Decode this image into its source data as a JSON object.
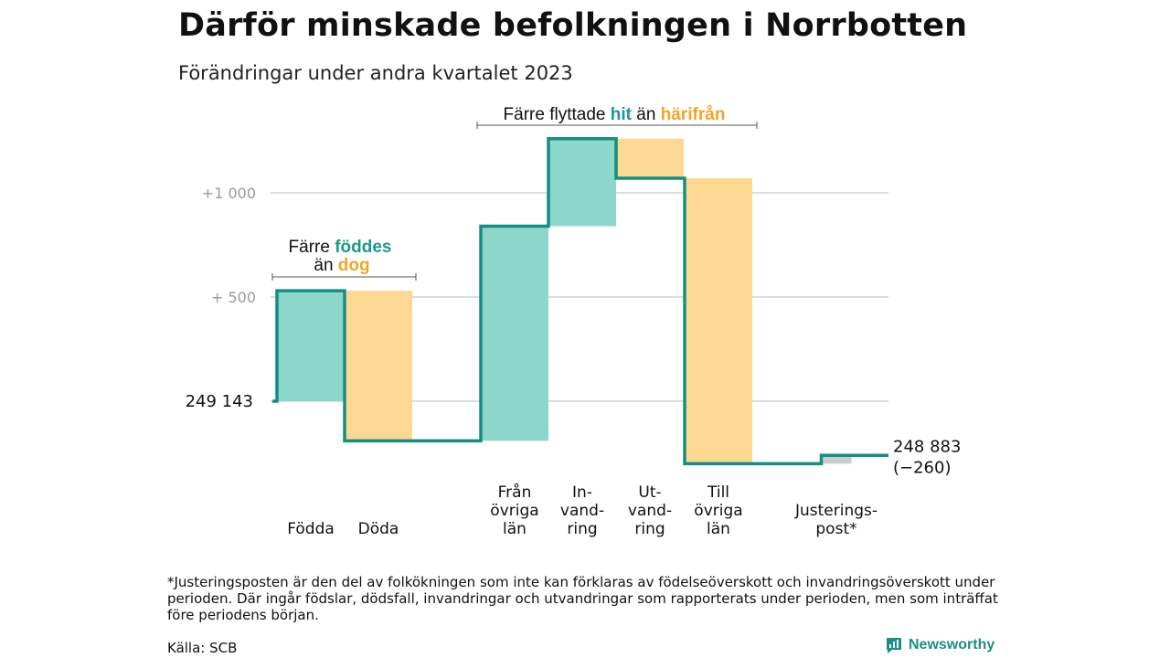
{
  "title": "Därför minskade befolkningen i Norrbotten",
  "subtitle": "Förändringar under andra kvartalet 2023",
  "colors": {
    "teal_line": "#138f82",
    "inflow_bar": "#8dd6cc",
    "outflow_bar": "#fcd893",
    "adjustment_bar": "#cccccc",
    "grid": "#dddddd",
    "highlight_in": "#1a9a8c",
    "highlight_out": "#f0a526"
  },
  "annotations": {
    "births": {
      "line1_prefix": "Färre ",
      "line1_highlight": "föddes",
      "line2_prefix": "än ",
      "line2_highlight": "dog"
    },
    "migration": {
      "prefix": "Färre flyttade ",
      "highlight_in": "hit",
      "middle": " än ",
      "highlight_out": "härifrån"
    }
  },
  "footnote": "*Justeringsposten är den del av folkökningen som inte kan förklaras av födelseöverskott och invandringsöverskott under perioden. Där ingår födslar, dödsfall, invandringar och utvandringar som rapporterats under perioden, men som inträffat före periodens början.",
  "source": "Källa: SCB",
  "brand": {
    "name": "Newsworthy",
    "icon": "newsworthy-logo-icon"
  },
  "chart_data": {
    "type": "waterfall",
    "start_value": 249143,
    "start_label": "249 143",
    "end_value": 248883,
    "end_label": "248 883",
    "end_change_label": "(−260)",
    "y_ticks": [
      {
        "offset": 500,
        "label": "+ 500"
      },
      {
        "offset": 1000,
        "label": "+1 000"
      }
    ],
    "ylim_offset": [
      -330,
      1330
    ],
    "grid": true,
    "steps": [
      {
        "label_lines": [
          "Födda"
        ],
        "delta": 530,
        "kind": "in"
      },
      {
        "label_lines": [
          "Döda"
        ],
        "delta": -720,
        "kind": "out"
      },
      {
        "label_lines": [
          "Från",
          "övriga",
          "län"
        ],
        "delta": 1030,
        "kind": "in"
      },
      {
        "label_lines": [
          "In-",
          "vand-",
          "ring"
        ],
        "delta": 420,
        "kind": "in"
      },
      {
        "label_lines": [
          "Ut-",
          "vand-",
          "ring"
        ],
        "delta": -190,
        "kind": "out"
      },
      {
        "label_lines": [
          "Till",
          "övriga",
          "län"
        ],
        "delta": -1370,
        "kind": "out"
      },
      {
        "label_lines": [
          "Justerings-",
          "post*"
        ],
        "delta": 40,
        "kind": "adj"
      }
    ]
  }
}
